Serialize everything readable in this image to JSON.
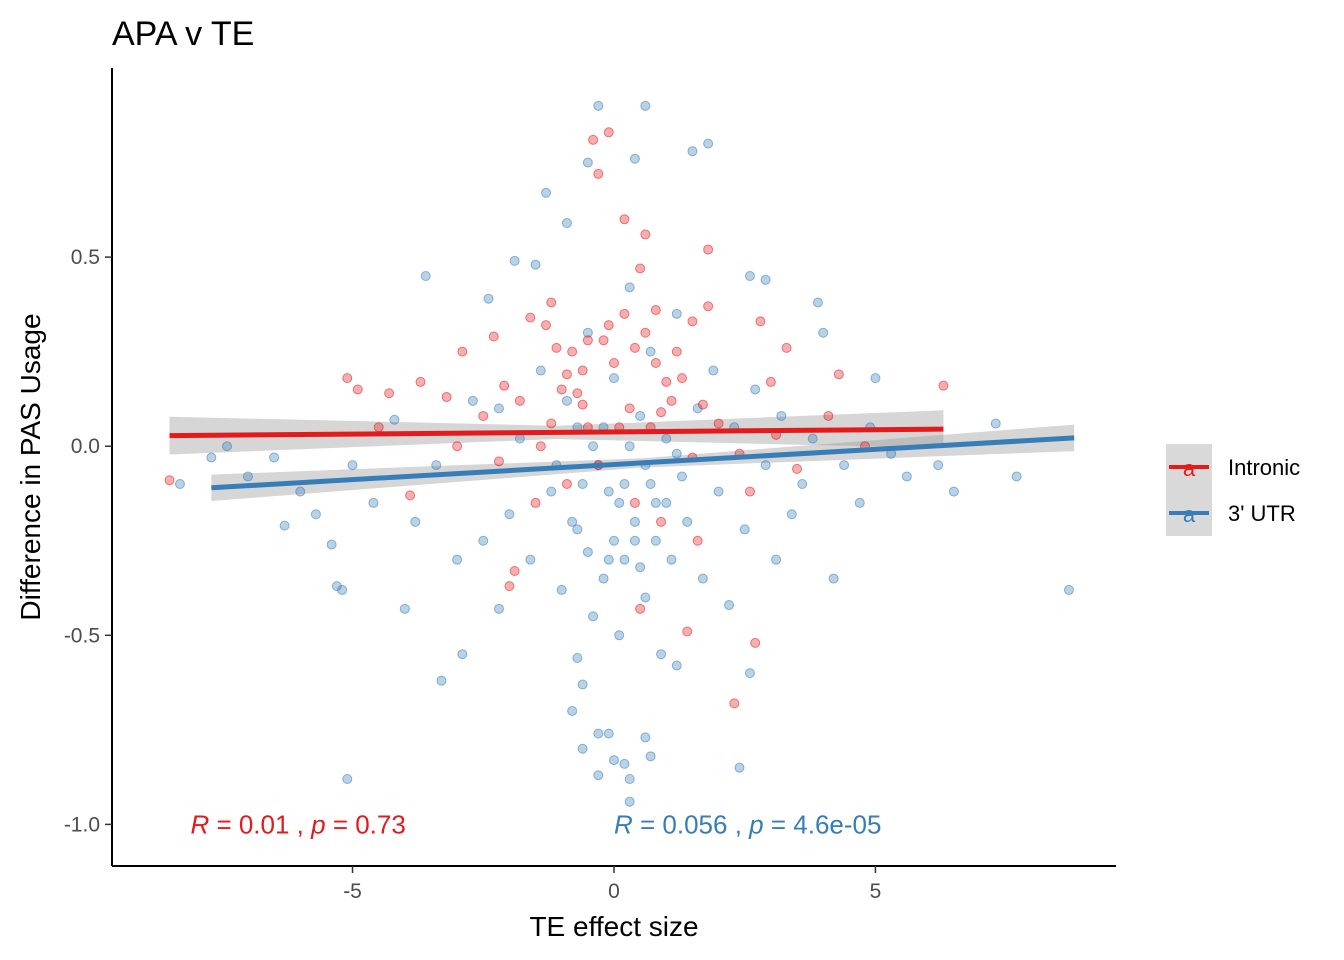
{
  "chart_data": {
    "type": "scatter",
    "title": "APA v TE",
    "xlabel": "TE effect size",
    "ylabel": "Difference in PAS Usage",
    "xlim": [
      -9.6,
      9.6
    ],
    "ylim": [
      -1.11,
      1.0
    ],
    "xticks": [
      -5,
      0,
      5
    ],
    "xtick_labels": [
      "-5",
      "0",
      "5"
    ],
    "yticks": [
      -1.0,
      -0.5,
      0.0,
      0.5
    ],
    "ytick_labels": [
      "-1.0",
      "-0.5",
      "0.0",
      "0.5"
    ],
    "grid": false,
    "legend_position": "right",
    "legend_glyph": "a",
    "series": [
      {
        "name": "Intronic",
        "color": "#e41a1c",
        "fit": {
          "x0": -8.5,
          "y0": 0.028,
          "x1": 6.3,
          "y1": 0.045,
          "band_halfwidth_ends": 0.05
        },
        "points": [
          [
            -8.5,
            -0.09
          ],
          [
            -5.1,
            0.18
          ],
          [
            -4.9,
            0.15
          ],
          [
            -4.3,
            0.14
          ],
          [
            -3.7,
            0.17
          ],
          [
            -3.2,
            0.13
          ],
          [
            -2.9,
            0.25
          ],
          [
            -2.3,
            0.29
          ],
          [
            -2.1,
            0.16
          ],
          [
            -1.8,
            0.12
          ],
          [
            -1.6,
            0.34
          ],
          [
            -1.3,
            0.32
          ],
          [
            -1.2,
            0.38
          ],
          [
            -1.1,
            0.26
          ],
          [
            -0.9,
            0.19
          ],
          [
            -0.7,
            0.14
          ],
          [
            -0.5,
            0.28
          ],
          [
            -0.4,
            0.81
          ],
          [
            -0.3,
            0.72
          ],
          [
            -0.1,
            0.83
          ],
          [
            0.2,
            0.6
          ],
          [
            0.5,
            0.47
          ],
          [
            0.6,
            0.56
          ],
          [
            0.8,
            0.36
          ],
          [
            1.2,
            0.25
          ],
          [
            1.5,
            0.33
          ],
          [
            1.8,
            0.37
          ],
          [
            1.8,
            0.52
          ],
          [
            2.3,
            -0.68
          ],
          [
            2.7,
            -0.52
          ],
          [
            2.8,
            0.33
          ],
          [
            3.0,
            0.17
          ],
          [
            3.3,
            0.26
          ],
          [
            4.1,
            0.08
          ],
          [
            4.3,
            0.19
          ],
          [
            6.3,
            0.16
          ],
          [
            -2.0,
            -0.37
          ],
          [
            -1.9,
            -0.33
          ],
          [
            0.5,
            -0.43
          ],
          [
            1.4,
            -0.49
          ],
          [
            -3.9,
            -0.13
          ],
          [
            -2.5,
            0.08
          ],
          [
            -1.4,
            0.0
          ],
          [
            -0.6,
            0.2
          ],
          [
            0.0,
            0.22
          ],
          [
            0.3,
            0.1
          ],
          [
            0.7,
            0.05
          ],
          [
            1.0,
            0.17
          ],
          [
            1.5,
            -0.03
          ],
          [
            2.0,
            0.06
          ],
          [
            2.4,
            -0.02
          ],
          [
            3.1,
            0.03
          ],
          [
            -0.9,
            -0.1
          ],
          [
            -0.3,
            -0.05
          ],
          [
            0.4,
            -0.15
          ],
          [
            0.9,
            -0.2
          ],
          [
            1.6,
            -0.25
          ],
          [
            -1.5,
            -0.15
          ],
          [
            -2.2,
            -0.04
          ],
          [
            2.6,
            -0.12
          ],
          [
            0.2,
            0.35
          ],
          [
            -0.2,
            0.28
          ],
          [
            0.6,
            0.3
          ],
          [
            -0.5,
            0.05
          ],
          [
            1.1,
            0.12
          ],
          [
            -1.0,
            0.15
          ],
          [
            0.1,
            0.05
          ],
          [
            -0.8,
            0.25
          ],
          [
            1.3,
            0.18
          ],
          [
            0.8,
            0.22
          ],
          [
            -0.1,
            0.32
          ],
          [
            0.4,
            0.26
          ],
          [
            -0.6,
            0.11
          ],
          [
            0.9,
            0.09
          ],
          [
            -1.2,
            0.06
          ],
          [
            1.7,
            0.11
          ],
          [
            -3.0,
            0.0
          ],
          [
            3.5,
            -0.06
          ],
          [
            -4.5,
            0.05
          ],
          [
            4.8,
            0.0
          ]
        ]
      },
      {
        "name": "3' UTR",
        "color": "#377eb8",
        "fit": {
          "x0": -7.7,
          "y0": -0.11,
          "x1": 8.8,
          "y1": 0.022,
          "band_halfwidth_ends": 0.035
        },
        "points": [
          [
            -7.7,
            -0.03
          ],
          [
            -7.4,
            0.0
          ],
          [
            -6.3,
            -0.21
          ],
          [
            -5.4,
            -0.26
          ],
          [
            -5.3,
            -0.37
          ],
          [
            -5.2,
            -0.38
          ],
          [
            -5.1,
            -0.88
          ],
          [
            -4.0,
            -0.43
          ],
          [
            -3.6,
            0.45
          ],
          [
            -3.3,
            -0.62
          ],
          [
            -2.9,
            -0.55
          ],
          [
            -2.4,
            0.39
          ],
          [
            -2.2,
            -0.43
          ],
          [
            -1.9,
            0.49
          ],
          [
            -1.5,
            0.48
          ],
          [
            -1.3,
            0.67
          ],
          [
            -0.9,
            0.59
          ],
          [
            -0.8,
            -0.7
          ],
          [
            -0.7,
            -0.56
          ],
          [
            -0.6,
            -0.63
          ],
          [
            -0.6,
            -0.8
          ],
          [
            -0.5,
            0.75
          ],
          [
            -0.3,
            -0.87
          ],
          [
            -0.3,
            -0.76
          ],
          [
            -0.3,
            0.9
          ],
          [
            -0.1,
            -0.76
          ],
          [
            0.0,
            -0.83
          ],
          [
            0.2,
            -0.84
          ],
          [
            0.3,
            -0.94
          ],
          [
            0.3,
            -0.88
          ],
          [
            0.4,
            0.76
          ],
          [
            0.6,
            0.9
          ],
          [
            0.6,
            -0.77
          ],
          [
            0.7,
            -0.82
          ],
          [
            1.2,
            -0.58
          ],
          [
            1.5,
            0.78
          ],
          [
            1.8,
            0.8
          ],
          [
            2.4,
            -0.85
          ],
          [
            2.6,
            -0.6
          ],
          [
            2.6,
            0.45
          ],
          [
            2.9,
            0.44
          ],
          [
            3.1,
            -0.3
          ],
          [
            3.9,
            0.38
          ],
          [
            4.0,
            0.3
          ],
          [
            4.2,
            -0.35
          ],
          [
            4.7,
            -0.15
          ],
          [
            5.0,
            0.18
          ],
          [
            5.3,
            -0.02
          ],
          [
            7.3,
            0.06
          ],
          [
            7.7,
            -0.08
          ],
          [
            8.7,
            -0.38
          ],
          [
            -7.0,
            -0.08
          ],
          [
            -6.5,
            -0.03
          ],
          [
            -6.0,
            -0.12
          ],
          [
            -5.7,
            -0.18
          ],
          [
            -5.0,
            -0.05
          ],
          [
            -4.6,
            -0.15
          ],
          [
            -4.2,
            0.07
          ],
          [
            -3.8,
            -0.2
          ],
          [
            -3.4,
            -0.05
          ],
          [
            -3.0,
            -0.3
          ],
          [
            -2.7,
            0.12
          ],
          [
            -2.5,
            -0.25
          ],
          [
            -2.2,
            0.1
          ],
          [
            -2.0,
            -0.18
          ],
          [
            -1.8,
            0.02
          ],
          [
            -1.6,
            -0.3
          ],
          [
            -1.4,
            0.2
          ],
          [
            -1.2,
            -0.12
          ],
          [
            -1.0,
            -0.38
          ],
          [
            -0.9,
            0.12
          ],
          [
            -0.7,
            -0.22
          ],
          [
            -0.5,
            0.3
          ],
          [
            -0.4,
            -0.45
          ],
          [
            -0.2,
            0.05
          ],
          [
            -0.1,
            -0.3
          ],
          [
            0.0,
            0.18
          ],
          [
            0.1,
            -0.5
          ],
          [
            0.2,
            -0.1
          ],
          [
            0.3,
            0.42
          ],
          [
            0.4,
            -0.25
          ],
          [
            0.5,
            0.08
          ],
          [
            0.6,
            -0.4
          ],
          [
            0.7,
            0.25
          ],
          [
            0.8,
            -0.15
          ],
          [
            0.9,
            -0.55
          ],
          [
            1.0,
            0.02
          ],
          [
            1.1,
            -0.3
          ],
          [
            1.2,
            0.35
          ],
          [
            1.3,
            -0.08
          ],
          [
            1.4,
            -0.2
          ],
          [
            1.6,
            0.1
          ],
          [
            1.7,
            -0.35
          ],
          [
            1.9,
            0.2
          ],
          [
            2.0,
            -0.12
          ],
          [
            2.2,
            -0.42
          ],
          [
            2.3,
            0.05
          ],
          [
            2.5,
            -0.22
          ],
          [
            2.7,
            0.15
          ],
          [
            2.9,
            -0.05
          ],
          [
            3.2,
            0.08
          ],
          [
            3.4,
            -0.18
          ],
          [
            3.6,
            -0.1
          ],
          [
            3.8,
            0.02
          ],
          [
            4.4,
            -0.05
          ],
          [
            4.9,
            0.05
          ],
          [
            5.6,
            -0.08
          ],
          [
            6.2,
            -0.05
          ],
          [
            6.5,
            -0.12
          ],
          [
            -8.3,
            -0.1
          ],
          [
            -0.3,
            -0.05
          ],
          [
            0.1,
            -0.15
          ],
          [
            -0.6,
            -0.1
          ],
          [
            0.4,
            -0.2
          ],
          [
            0.0,
            -0.25
          ],
          [
            -0.2,
            -0.35
          ],
          [
            0.6,
            -0.05
          ],
          [
            0.2,
            -0.3
          ],
          [
            -0.4,
            0.0
          ],
          [
            0.8,
            -0.25
          ],
          [
            -0.8,
            -0.2
          ],
          [
            1.0,
            -0.15
          ],
          [
            -1.1,
            -0.05
          ],
          [
            0.5,
            -0.32
          ],
          [
            -0.5,
            -0.28
          ],
          [
            0.3,
            0.0
          ],
          [
            -0.1,
            -0.12
          ],
          [
            0.7,
            -0.1
          ],
          [
            -0.7,
            0.05
          ],
          [
            1.2,
            -0.02
          ]
        ]
      }
    ],
    "annotations": [
      {
        "color": "#e41a1c",
        "x": -8.1,
        "y": -1.0,
        "R": "0.01",
        "p": "0.73"
      },
      {
        "color": "#377eb8",
        "x": 0.0,
        "y": -1.0,
        "R": "0.056",
        "p": "4.6e-05"
      }
    ]
  }
}
